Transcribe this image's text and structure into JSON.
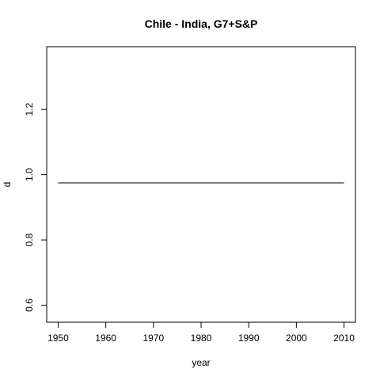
{
  "chart_data": {
    "type": "line",
    "title": "Chile - India, G7+S&P",
    "xlabel": "year",
    "ylabel": "d",
    "xlim": [
      1947.6,
      2012.4
    ],
    "ylim": [
      0.548,
      1.392
    ],
    "x_ticks": [
      1950,
      1960,
      1970,
      1980,
      1990,
      2000,
      2010
    ],
    "y_ticks": [
      0.6,
      0.8,
      1.0,
      1.2
    ],
    "x_tick_labels": [
      "1950",
      "1960",
      "1970",
      "1980",
      "1990",
      "2000",
      "2010"
    ],
    "y_tick_labels": [
      "0.6",
      "0.8",
      "1.0",
      "1.2"
    ],
    "grid": false,
    "series": [
      {
        "x": [
          1950,
          2010
        ],
        "y": [
          0.975,
          0.975
        ],
        "color": "#000000"
      }
    ]
  }
}
